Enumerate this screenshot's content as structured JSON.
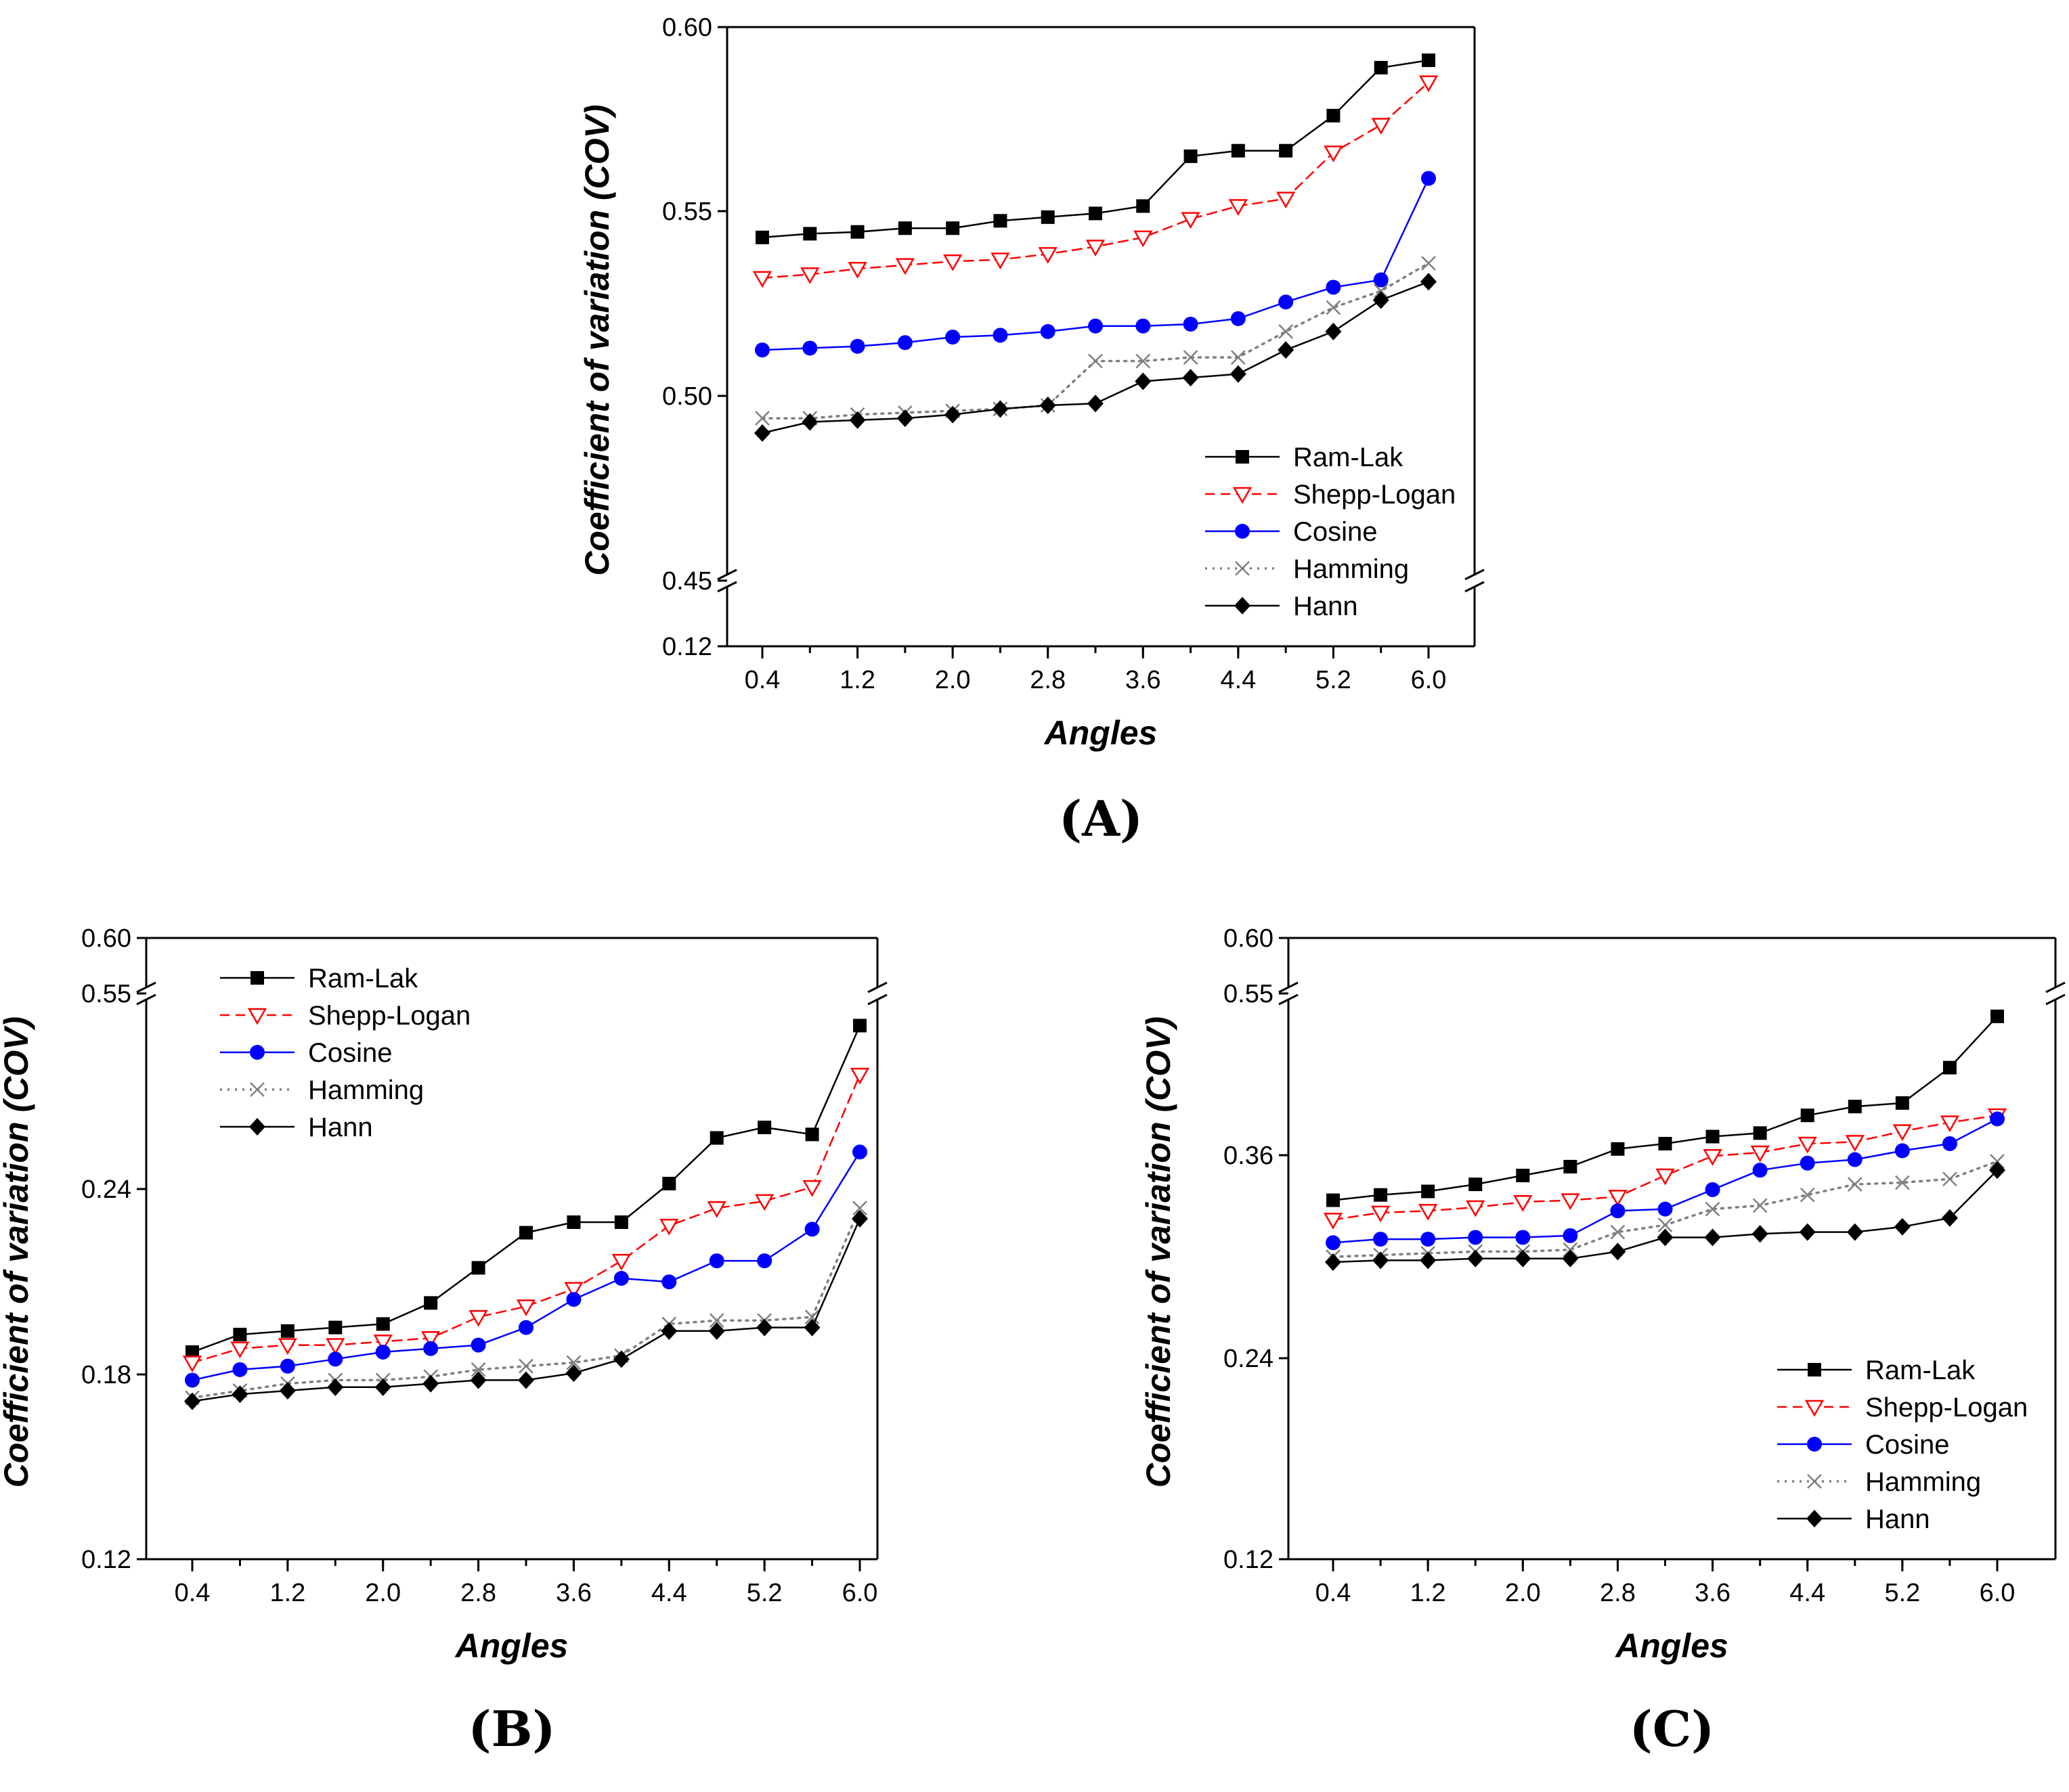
{
  "colors": {
    "Ram-Lak": "#000000",
    "Shepp-Logan": "#ff0000",
    "Cosine": "#0000ff",
    "Hamming": "#7f7f7f",
    "Hann": "#000000"
  },
  "chart_data": [
    {
      "type": "line",
      "panel_label": "(A)",
      "xlabel": "Angles",
      "ylabel": "Coefficient of variation (COV)",
      "x": [
        0.4,
        0.8,
        1.2,
        1.6,
        2.0,
        2.4,
        2.8,
        3.2,
        3.6,
        4.0,
        4.4,
        4.8,
        5.2,
        5.6,
        6.0
      ],
      "x_ticks": [
        "0.4",
        "1.2",
        "2.0",
        "2.8",
        "3.6",
        "4.4",
        "5.2",
        "6.0"
      ],
      "y_ticks": [
        "0.60",
        "0.55",
        "0.50",
        "0.45",
        "0.12"
      ],
      "y_axis_break": [
        0.12,
        0.45
      ],
      "ylim_upper": [
        0.45,
        0.6
      ],
      "legend_position": "bottom-right",
      "series": [
        {
          "name": "Ram-Lak",
          "marker": "square",
          "dash": "solid",
          "values": [
            0.543,
            0.544,
            0.5445,
            0.5455,
            0.5455,
            0.5475,
            0.5485,
            0.5495,
            0.5515,
            0.565,
            0.5665,
            0.5665,
            0.576,
            0.589,
            0.591
          ]
        },
        {
          "name": "Shepp-Logan",
          "marker": "triangle-down",
          "dash": "dashed",
          "values": [
            0.532,
            0.533,
            0.5345,
            0.5355,
            0.5365,
            0.537,
            0.5385,
            0.5405,
            0.543,
            0.548,
            0.5515,
            0.5535,
            0.566,
            0.5735,
            0.585
          ]
        },
        {
          "name": "Cosine",
          "marker": "circle",
          "dash": "solid",
          "values": [
            0.5125,
            0.513,
            0.5135,
            0.5145,
            0.516,
            0.5165,
            0.5175,
            0.519,
            0.519,
            0.5195,
            0.521,
            0.5255,
            0.5295,
            0.5315,
            0.559
          ]
        },
        {
          "name": "Hamming",
          "marker": "x",
          "dash": "dotted",
          "values": [
            0.494,
            0.494,
            0.495,
            0.4955,
            0.496,
            0.4965,
            0.4975,
            0.5095,
            0.5095,
            0.5105,
            0.5105,
            0.5175,
            0.524,
            0.5285,
            0.536
          ]
        },
        {
          "name": "Hann",
          "marker": "diamond",
          "dash": "solid",
          "values": [
            0.49,
            0.493,
            0.4935,
            0.494,
            0.495,
            0.4965,
            0.4975,
            0.498,
            0.504,
            0.505,
            0.506,
            0.5125,
            0.5175,
            0.526,
            0.531
          ]
        }
      ]
    },
    {
      "type": "line",
      "panel_label": "(B)",
      "xlabel": "Angles",
      "ylabel": "Coefficient of variation (COV)",
      "x": [
        0.4,
        0.8,
        1.2,
        1.6,
        2.0,
        2.4,
        2.8,
        3.2,
        3.6,
        4.0,
        4.4,
        4.8,
        5.2,
        5.6,
        6.0
      ],
      "x_ticks": [
        "0.4",
        "1.2",
        "2.0",
        "2.8",
        "3.6",
        "4.4",
        "5.2",
        "6.0"
      ],
      "y_ticks": [
        "0.60",
        "0.55",
        "0.24",
        "0.18",
        "0.12"
      ],
      "y_axis_break": [
        0.28,
        0.55
      ],
      "ylim_lower": [
        0.12,
        0.28
      ],
      "legend_position": "top-left",
      "series": [
        {
          "name": "Ram-Lak",
          "marker": "square",
          "dash": "solid",
          "values": [
            0.179,
            0.184,
            0.185,
            0.186,
            0.187,
            0.193,
            0.203,
            0.213,
            0.216,
            0.216,
            0.227,
            0.24,
            0.243,
            0.241,
            0.272
          ]
        },
        {
          "name": "Shepp-Logan",
          "marker": "triangle-down",
          "dash": "dashed",
          "values": [
            0.176,
            0.18,
            0.181,
            0.181,
            0.182,
            0.183,
            0.189,
            0.192,
            0.197,
            0.205,
            0.215,
            0.22,
            0.222,
            0.226,
            0.258
          ]
        },
        {
          "name": "Cosine",
          "marker": "circle",
          "dash": "solid",
          "values": [
            0.171,
            0.174,
            0.175,
            0.177,
            0.179,
            0.18,
            0.181,
            0.186,
            0.194,
            0.2,
            0.199,
            0.205,
            0.205,
            0.214,
            0.236
          ]
        },
        {
          "name": "Hamming",
          "marker": "x",
          "dash": "dotted",
          "values": [
            0.166,
            0.168,
            0.17,
            0.171,
            0.171,
            0.172,
            0.174,
            0.175,
            0.176,
            0.178,
            0.187,
            0.188,
            0.188,
            0.189,
            0.22
          ]
        },
        {
          "name": "Hann",
          "marker": "diamond",
          "dash": "solid",
          "values": [
            0.165,
            0.167,
            0.168,
            0.169,
            0.169,
            0.17,
            0.171,
            0.171,
            0.173,
            0.177,
            0.185,
            0.185,
            0.186,
            0.186,
            0.217
          ]
        }
      ]
    },
    {
      "type": "line",
      "panel_label": "(C)",
      "xlabel": "Angles",
      "ylabel": "Coefficient of variation (COV)",
      "x": [
        0.4,
        0.8,
        1.2,
        1.6,
        2.0,
        2.4,
        2.8,
        3.2,
        3.6,
        4.0,
        4.4,
        4.8,
        5.2,
        5.6,
        6.0
      ],
      "x_ticks": [
        "0.4",
        "1.2",
        "2.0",
        "2.8",
        "3.6",
        "4.4",
        "5.2",
        "6.0"
      ],
      "y_ticks": [
        "0.60",
        "0.55",
        "0.36",
        "0.24",
        "0.12"
      ],
      "y_axis_break": [
        0.43,
        0.55
      ],
      "ylim_lower": [
        0.12,
        0.43
      ],
      "legend_position": "bottom-right",
      "series": [
        {
          "name": "Ram-Lak",
          "marker": "square",
          "dash": "solid",
          "values": [
            0.323,
            0.326,
            0.328,
            0.332,
            0.337,
            0.342,
            0.352,
            0.355,
            0.359,
            0.361,
            0.371,
            0.376,
            0.378,
            0.398,
            0.427
          ]
        },
        {
          "name": "Shepp-Logan",
          "marker": "triangle-down",
          "dash": "dashed",
          "values": [
            0.312,
            0.316,
            0.317,
            0.319,
            0.322,
            0.323,
            0.325,
            0.337,
            0.348,
            0.35,
            0.355,
            0.356,
            0.362,
            0.367,
            0.371
          ]
        },
        {
          "name": "Cosine",
          "marker": "circle",
          "dash": "solid",
          "values": [
            0.299,
            0.301,
            0.301,
            0.302,
            0.302,
            0.303,
            0.317,
            0.318,
            0.329,
            0.34,
            0.344,
            0.346,
            0.351,
            0.355,
            0.369
          ]
        },
        {
          "name": "Hamming",
          "marker": "x",
          "dash": "dotted",
          "values": [
            0.291,
            0.292,
            0.293,
            0.294,
            0.294,
            0.295,
            0.305,
            0.309,
            0.318,
            0.32,
            0.326,
            0.332,
            0.333,
            0.335,
            0.345
          ]
        },
        {
          "name": "Hann",
          "marker": "diamond",
          "dash": "solid",
          "values": [
            0.288,
            0.289,
            0.289,
            0.29,
            0.29,
            0.29,
            0.294,
            0.302,
            0.302,
            0.304,
            0.305,
            0.305,
            0.308,
            0.313,
            0.34
          ]
        }
      ]
    }
  ]
}
